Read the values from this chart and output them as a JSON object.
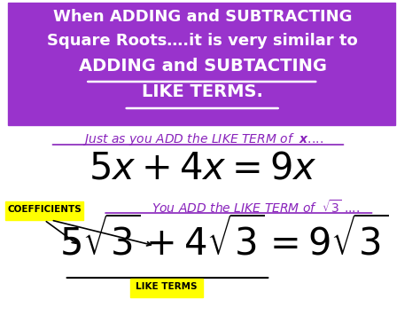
{
  "bg_color": "#ffffff",
  "purple_box_color": "#9933cc",
  "yellow_color": "#ffff00",
  "purple_text_color": "#8822bb",
  "black_text_color": "#000000",
  "white_text_color": "#ffffff",
  "title_line1": "When ADDING and SUBTRACTING",
  "title_line2": "Square Roots….it is very similar to",
  "title_line3": "ADDING and SUBTACTING",
  "title_line4": "LIKE TERMS.",
  "coefficients_label": "COEFFICIENTS",
  "like_terms_label": "LIKE TERMS"
}
